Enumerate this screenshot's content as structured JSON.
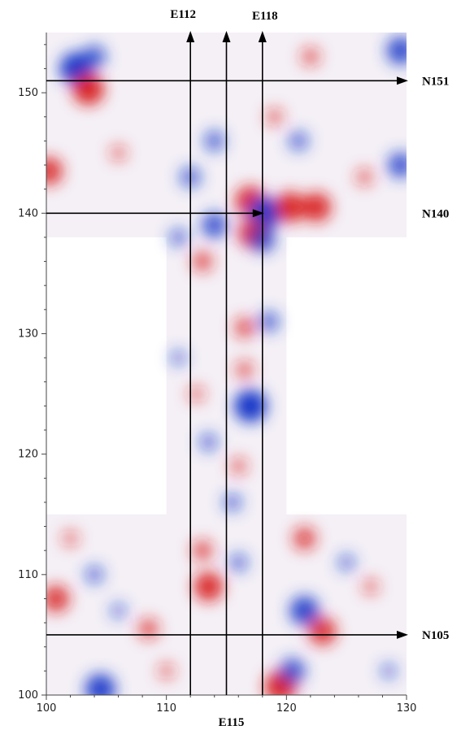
{
  "chart_data": {
    "type": "heatmap",
    "title": "",
    "xlabel": "",
    "ylabel": "",
    "xlim": [
      100,
      130
    ],
    "ylim": [
      100,
      155
    ],
    "x_ticks": [
      100,
      110,
      120,
      130
    ],
    "x_tick_labels": [
      "100",
      "110",
      "120",
      "130"
    ],
    "y_ticks": [
      100,
      110,
      120,
      130,
      140,
      150
    ],
    "y_tick_labels": [
      "100",
      "110",
      "120",
      "130",
      "140",
      "150"
    ],
    "grid": false,
    "colormap": {
      "negative": "#1537c8",
      "zero": "#ffffff",
      "positive": "#d81b1b"
    },
    "survey_regions": [
      {
        "x": [
          100,
          130
        ],
        "y": [
          138,
          155
        ]
      },
      {
        "x": [
          110,
          120
        ],
        "y": [
          100,
          138
        ]
      },
      {
        "x": [
          100,
          130
        ],
        "y": [
          100,
          115
        ]
      }
    ],
    "anomalies": [
      {
        "x": 102.5,
        "y": 152,
        "v": -1.0
      },
      {
        "x": 104,
        "y": 153,
        "v": -0.6
      },
      {
        "x": 103.5,
        "y": 150.3,
        "v": 0.95
      },
      {
        "x": 100.2,
        "y": 143.5,
        "v": 0.8
      },
      {
        "x": 106,
        "y": 145,
        "v": 0.3
      },
      {
        "x": 112,
        "y": 143,
        "v": -0.5
      },
      {
        "x": 117,
        "y": 141,
        "v": 0.9
      },
      {
        "x": 118.2,
        "y": 140,
        "v": -1.0
      },
      {
        "x": 117.2,
        "y": 138.3,
        "v": 0.85
      },
      {
        "x": 118,
        "y": 137.8,
        "v": -0.7
      },
      {
        "x": 120.3,
        "y": 140.5,
        "v": 0.9
      },
      {
        "x": 122.5,
        "y": 140.5,
        "v": 0.85
      },
      {
        "x": 126.5,
        "y": 143,
        "v": 0.35
      },
      {
        "x": 129.5,
        "y": 144,
        "v": -0.7
      },
      {
        "x": 122,
        "y": 153,
        "v": 0.4
      },
      {
        "x": 129.5,
        "y": 153.5,
        "v": -0.8
      },
      {
        "x": 114,
        "y": 146,
        "v": -0.5
      },
      {
        "x": 119,
        "y": 148,
        "v": 0.35
      },
      {
        "x": 121,
        "y": 146,
        "v": -0.45
      },
      {
        "x": 113,
        "y": 136,
        "v": 0.5
      },
      {
        "x": 111,
        "y": 138,
        "v": -0.4
      },
      {
        "x": 114,
        "y": 139,
        "v": -0.7
      },
      {
        "x": 116.5,
        "y": 130.5,
        "v": 0.5
      },
      {
        "x": 116.5,
        "y": 127,
        "v": 0.4
      },
      {
        "x": 117,
        "y": 124,
        "v": -1.0
      },
      {
        "x": 112.5,
        "y": 125,
        "v": 0.3
      },
      {
        "x": 113.5,
        "y": 121,
        "v": -0.4
      },
      {
        "x": 116,
        "y": 119,
        "v": 0.35
      },
      {
        "x": 118.5,
        "y": 131,
        "v": -0.5
      },
      {
        "x": 111,
        "y": 128,
        "v": -0.3
      },
      {
        "x": 115.5,
        "y": 116,
        "v": -0.4
      },
      {
        "x": 113.5,
        "y": 109,
        "v": 0.85
      },
      {
        "x": 113,
        "y": 112,
        "v": 0.5
      },
      {
        "x": 116,
        "y": 111,
        "v": -0.4
      },
      {
        "x": 100.8,
        "y": 108,
        "v": 0.75
      },
      {
        "x": 104.5,
        "y": 100.5,
        "v": -0.9
      },
      {
        "x": 108.5,
        "y": 105.5,
        "v": 0.5
      },
      {
        "x": 119.5,
        "y": 100.7,
        "v": 0.95
      },
      {
        "x": 120.5,
        "y": 102,
        "v": -0.7
      },
      {
        "x": 121.5,
        "y": 107,
        "v": -0.85
      },
      {
        "x": 123,
        "y": 105.3,
        "v": 0.8
      },
      {
        "x": 121.5,
        "y": 113,
        "v": 0.6
      },
      {
        "x": 104,
        "y": 110,
        "v": -0.4
      },
      {
        "x": 106,
        "y": 107,
        "v": -0.3
      },
      {
        "x": 127,
        "y": 109,
        "v": 0.3
      },
      {
        "x": 125,
        "y": 111,
        "v": -0.35
      },
      {
        "x": 102,
        "y": 113,
        "v": 0.3
      },
      {
        "x": 128.5,
        "y": 102,
        "v": -0.3
      },
      {
        "x": 110,
        "y": 102,
        "v": 0.3
      }
    ],
    "profile_lines": [
      {
        "label": "E112",
        "orientation": "vertical",
        "x": 112,
        "y_from": 100,
        "y_to": 155
      },
      {
        "label": "E115",
        "orientation": "vertical",
        "x": 115,
        "y_from": 100,
        "y_to": 155
      },
      {
        "label": "E118",
        "orientation": "vertical",
        "x": 118,
        "y_from": 100,
        "y_to": 155
      },
      {
        "label": "N151",
        "orientation": "horizontal",
        "y": 151,
        "x_from": 100,
        "x_to": 130
      },
      {
        "label": "N140",
        "orientation": "horizontal",
        "y": 140,
        "x_from": 100,
        "x_to": 118
      },
      {
        "label": "N105",
        "orientation": "horizontal",
        "y": 105,
        "x_from": 100,
        "x_to": 130
      }
    ]
  }
}
